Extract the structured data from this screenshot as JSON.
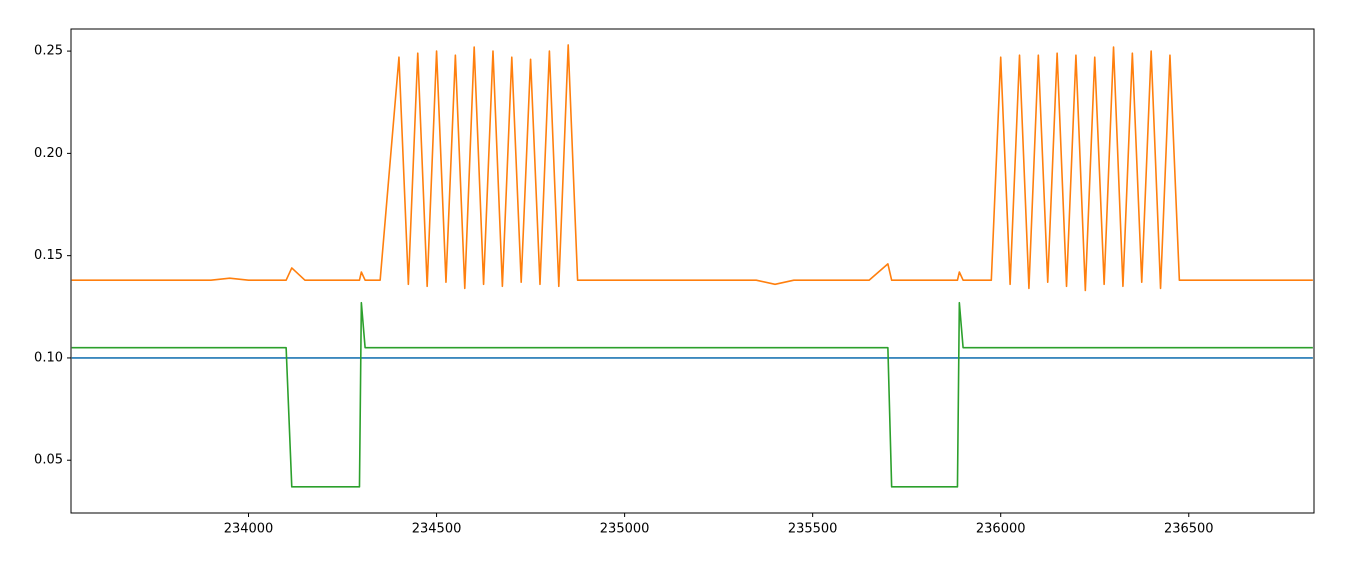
{
  "chart_data": {
    "type": "line",
    "x": [
      233530,
      233550,
      233600,
      233650,
      233700,
      233750,
      233800,
      233850,
      233900,
      233950,
      234000,
      234050,
      234100,
      234115,
      234150,
      234200,
      234250,
      234295,
      234300,
      234310,
      234350,
      234400,
      234425,
      234450,
      234475,
      234500,
      234525,
      234550,
      234575,
      234600,
      234625,
      234650,
      234675,
      234700,
      234725,
      234750,
      234775,
      234800,
      234825,
      234850,
      234875,
      234900,
      234950,
      235000,
      235050,
      235100,
      235150,
      235200,
      235250,
      235300,
      235350,
      235400,
      235450,
      235500,
      235550,
      235600,
      235650,
      235700,
      235710,
      235750,
      235800,
      235850,
      235885,
      235890,
      235900,
      235950,
      235975,
      236000,
      236025,
      236050,
      236075,
      236100,
      236125,
      236150,
      236175,
      236200,
      236225,
      236250,
      236275,
      236300,
      236325,
      236350,
      236375,
      236400,
      236425,
      236450,
      236475,
      236500,
      236550,
      236600,
      236650,
      236700,
      236750,
      236800,
      236830
    ],
    "series": [
      {
        "color": "#1f77b4",
        "values": [
          0.1,
          0.1,
          0.1,
          0.1,
          0.1,
          0.1,
          0.1,
          0.1,
          0.1,
          0.1,
          0.1,
          0.1,
          0.1,
          0.1,
          0.1,
          0.1,
          0.1,
          0.1,
          0.1,
          0.1,
          0.1,
          0.1,
          0.1,
          0.1,
          0.1,
          0.1,
          0.1,
          0.1,
          0.1,
          0.1,
          0.1,
          0.1,
          0.1,
          0.1,
          0.1,
          0.1,
          0.1,
          0.1,
          0.1,
          0.1,
          0.1,
          0.1,
          0.1,
          0.1,
          0.1,
          0.1,
          0.1,
          0.1,
          0.1,
          0.1,
          0.1,
          0.1,
          0.1,
          0.1,
          0.1,
          0.1,
          0.1,
          0.1,
          0.1,
          0.1,
          0.1,
          0.1,
          0.1,
          0.1,
          0.1,
          0.1,
          0.1,
          0.1,
          0.1,
          0.1,
          0.1,
          0.1,
          0.1,
          0.1,
          0.1,
          0.1,
          0.1,
          0.1,
          0.1,
          0.1,
          0.1,
          0.1,
          0.1,
          0.1,
          0.1,
          0.1,
          0.1,
          0.1,
          0.1,
          0.1,
          0.1,
          0.1,
          0.1,
          0.1,
          0.1
        ]
      },
      {
        "color": "#ff7f0e",
        "values": [
          0.138,
          0.138,
          0.138,
          0.138,
          0.138,
          0.138,
          0.138,
          0.138,
          0.138,
          0.139,
          0.138,
          0.138,
          0.138,
          0.144,
          0.138,
          0.138,
          0.138,
          0.138,
          0.142,
          0.138,
          0.138,
          0.247,
          0.136,
          0.249,
          0.135,
          0.25,
          0.137,
          0.248,
          0.134,
          0.252,
          0.136,
          0.25,
          0.135,
          0.247,
          0.137,
          0.246,
          0.136,
          0.25,
          0.135,
          0.253,
          0.138,
          0.138,
          0.138,
          0.138,
          0.138,
          0.138,
          0.138,
          0.138,
          0.138,
          0.138,
          0.138,
          0.136,
          0.138,
          0.138,
          0.138,
          0.138,
          0.138,
          0.146,
          0.138,
          0.138,
          0.138,
          0.138,
          0.138,
          0.142,
          0.138,
          0.138,
          0.138,
          0.247,
          0.136,
          0.248,
          0.134,
          0.248,
          0.137,
          0.249,
          0.135,
          0.248,
          0.133,
          0.247,
          0.136,
          0.252,
          0.135,
          0.249,
          0.137,
          0.25,
          0.134,
          0.248,
          0.138,
          0.138,
          0.138,
          0.138,
          0.138,
          0.138,
          0.138,
          0.138,
          0.138
        ]
      },
      {
        "color": "#2ca02c",
        "values": [
          0.105,
          0.105,
          0.105,
          0.105,
          0.105,
          0.105,
          0.105,
          0.105,
          0.105,
          0.105,
          0.105,
          0.105,
          0.105,
          0.037,
          0.037,
          0.037,
          0.037,
          0.037,
          0.127,
          0.105,
          0.105,
          0.105,
          0.105,
          0.105,
          0.105,
          0.105,
          0.105,
          0.105,
          0.105,
          0.105,
          0.105,
          0.105,
          0.105,
          0.105,
          0.105,
          0.105,
          0.105,
          0.105,
          0.105,
          0.105,
          0.105,
          0.105,
          0.105,
          0.105,
          0.105,
          0.105,
          0.105,
          0.105,
          0.105,
          0.105,
          0.105,
          0.105,
          0.105,
          0.105,
          0.105,
          0.105,
          0.105,
          0.105,
          0.037,
          0.037,
          0.037,
          0.037,
          0.037,
          0.127,
          0.105,
          0.105,
          0.105,
          0.105,
          0.105,
          0.105,
          0.105,
          0.105,
          0.105,
          0.105,
          0.105,
          0.105,
          0.105,
          0.105,
          0.105,
          0.105,
          0.105,
          0.105,
          0.105,
          0.105,
          0.105,
          0.105,
          0.105,
          0.105,
          0.105,
          0.105,
          0.105,
          0.105,
          0.105,
          0.105,
          0.105
        ]
      }
    ],
    "xlim": [
      233528,
      236833
    ],
    "ylim": [
      0.0242,
      0.2608
    ],
    "xticks": [
      234000,
      234500,
      235000,
      235500,
      236000,
      236500
    ],
    "yticks": [
      0.05,
      {
        "value": 0.1,
        "label": "0.10"
      },
      0.15,
      {
        "value": 0.2,
        "label": "0.20"
      },
      0.25
    ]
  }
}
